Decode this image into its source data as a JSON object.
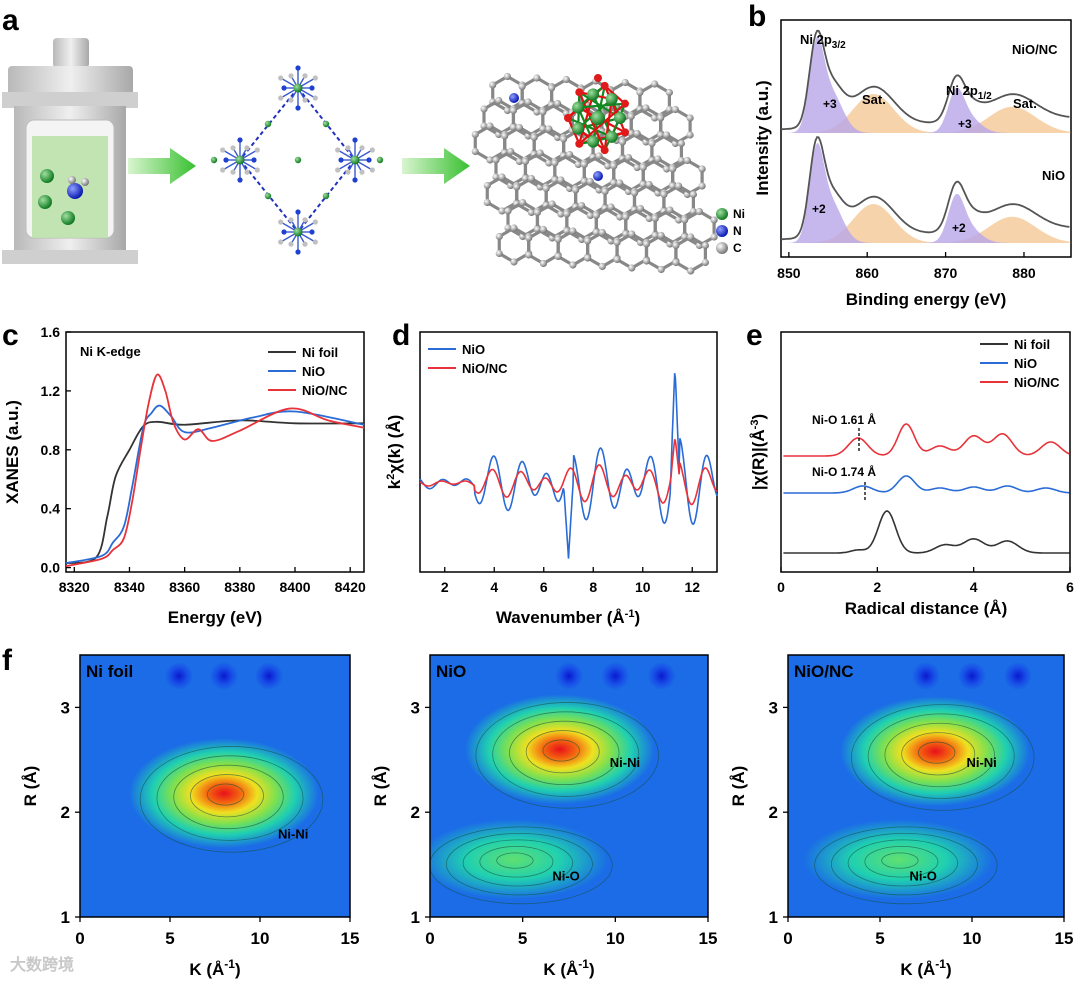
{
  "panel_a": {
    "label": "a",
    "legend": [
      {
        "symbol": "Ni",
        "color": "#1a8a2a"
      },
      {
        "symbol": "N",
        "color": "#1530c8"
      },
      {
        "symbol": "C",
        "color": "#9a9a9a"
      }
    ],
    "ball_text": "Ni"
  },
  "colors": {
    "ni_foil": "#333333",
    "nio": "#2a6bd6",
    "nionc": "#e8333a",
    "fit_ni": "#b8a6e8",
    "fit_sat": "#f5c896"
  },
  "watermark": "大数跨境",
  "chart_data": [
    {
      "panel": "b",
      "type": "line",
      "xlabel": "Binding energy (eV)",
      "ylabel": "Intensity (a.u.)",
      "xlim": [
        849,
        886
      ],
      "xticks": [
        "850",
        "860",
        "870",
        "880"
      ],
      "annotations": [
        "Ni 2p3/2",
        "Ni 2p1/2",
        "+3",
        "+3",
        "+2",
        "+2",
        "Sat.",
        "Sat."
      ],
      "series": [
        {
          "name": "NiO/NC"
        },
        {
          "name": "NiO"
        }
      ],
      "peaks_eV": {
        "2p3/2": 853.5,
        "2p3/2_component": 855.3,
        "sat1": 860.8,
        "2p1/2": 871.3,
        "2p1/2_component": 872.7,
        "sat2": 878.5
      }
    },
    {
      "panel": "c",
      "type": "line",
      "xlabel": "Energy (eV)",
      "ylabel": "XANES (a.u.)",
      "title": "Ni K-edge",
      "xlim": [
        8317,
        8425
      ],
      "ylim": [
        -0.03,
        1.6
      ],
      "xticks": [
        "8320",
        "8340",
        "8360",
        "8380",
        "8400",
        "8420"
      ],
      "yticks": [
        "0.0",
        "0.4",
        "0.8",
        "1.2",
        "1.6"
      ],
      "series": [
        {
          "name": "Ni foil",
          "x": [
            8317,
            8328,
            8332,
            8335,
            8340,
            8345,
            8350,
            8360,
            8380,
            8400,
            8425
          ],
          "y": [
            0.03,
            0.07,
            0.35,
            0.62,
            0.8,
            0.96,
            0.99,
            0.97,
            1.0,
            0.98,
            0.98
          ]
        },
        {
          "name": "NiO",
          "x": [
            8317,
            8330,
            8334,
            8338,
            8341,
            8345,
            8348,
            8351,
            8355,
            8360,
            8370,
            8385,
            8400,
            8425
          ],
          "y": [
            0.03,
            0.08,
            0.17,
            0.28,
            0.55,
            0.95,
            1.05,
            1.1,
            1.03,
            0.92,
            0.95,
            1.02,
            1.06,
            0.97
          ]
        },
        {
          "name": "NiO/NC",
          "x": [
            8317,
            8330,
            8334,
            8338,
            8341,
            8344,
            8347,
            8350,
            8353,
            8356,
            8360,
            8365,
            8370,
            8380,
            8398,
            8412,
            8425
          ],
          "y": [
            0.01,
            0.06,
            0.12,
            0.2,
            0.45,
            0.8,
            1.12,
            1.31,
            1.2,
            0.98,
            0.87,
            0.94,
            0.86,
            0.93,
            1.08,
            1.0,
            0.95
          ]
        }
      ]
    },
    {
      "panel": "d",
      "type": "line",
      "xlabel": "Wavenumber (Å-1)",
      "ylabel": "k2χ(k) (Å)",
      "xlim": [
        1,
        13
      ],
      "xticks": [
        "2",
        "4",
        "6",
        "8",
        "10",
        "12"
      ],
      "series": [
        {
          "name": "NiO"
        },
        {
          "name": "NiO/NC"
        }
      ]
    },
    {
      "panel": "e",
      "type": "line",
      "xlabel": "Radical distance (Å)",
      "ylabel": "|χ(R)|(Å-3)",
      "xlim": [
        0,
        6
      ],
      "xticks": [
        "0",
        "2",
        "4",
        "6"
      ],
      "annotations": [
        {
          "text": "Ni-O 1.61 Å",
          "x": 1.61
        },
        {
          "text": "Ni-O 1.74 Å",
          "x": 1.74
        }
      ],
      "series": [
        {
          "name": "Ni foil"
        },
        {
          "name": "NiO"
        },
        {
          "name": "NiO/NC"
        }
      ]
    },
    {
      "panel": "f",
      "type": "heatmap",
      "xlabel": "K (Å-1)",
      "ylabel": "R (Å)",
      "xlim": [
        0,
        15
      ],
      "ylim": [
        1,
        3.5
      ],
      "xticks": [
        "0",
        "5",
        "10",
        "15"
      ],
      "yticks": [
        "1",
        "2",
        "3"
      ],
      "maps": [
        {
          "title": "Ni foil",
          "label": "Ni-Ni",
          "maxima": [
            {
              "k": 8.0,
              "R": 2.18,
              "intensity": 1.0
            }
          ]
        },
        {
          "title": "NiO",
          "labels": [
            "Ni-Ni",
            "Ni-O"
          ],
          "maxima": [
            {
              "k": 7.0,
              "R": 2.6,
              "intensity": 1.0
            },
            {
              "k": 4.5,
              "R": 1.55,
              "intensity": 0.5
            }
          ]
        },
        {
          "title": "NiO/NC",
          "labels": [
            "Ni-Ni",
            "Ni-O"
          ],
          "maxima": [
            {
              "k": 8.0,
              "R": 2.58,
              "intensity": 1.0
            },
            {
              "k": 6.0,
              "R": 1.55,
              "intensity": 0.4
            }
          ]
        }
      ]
    }
  ],
  "labels": {
    "b": "b",
    "c": "c",
    "d": "d",
    "e": "e",
    "f": "f"
  }
}
